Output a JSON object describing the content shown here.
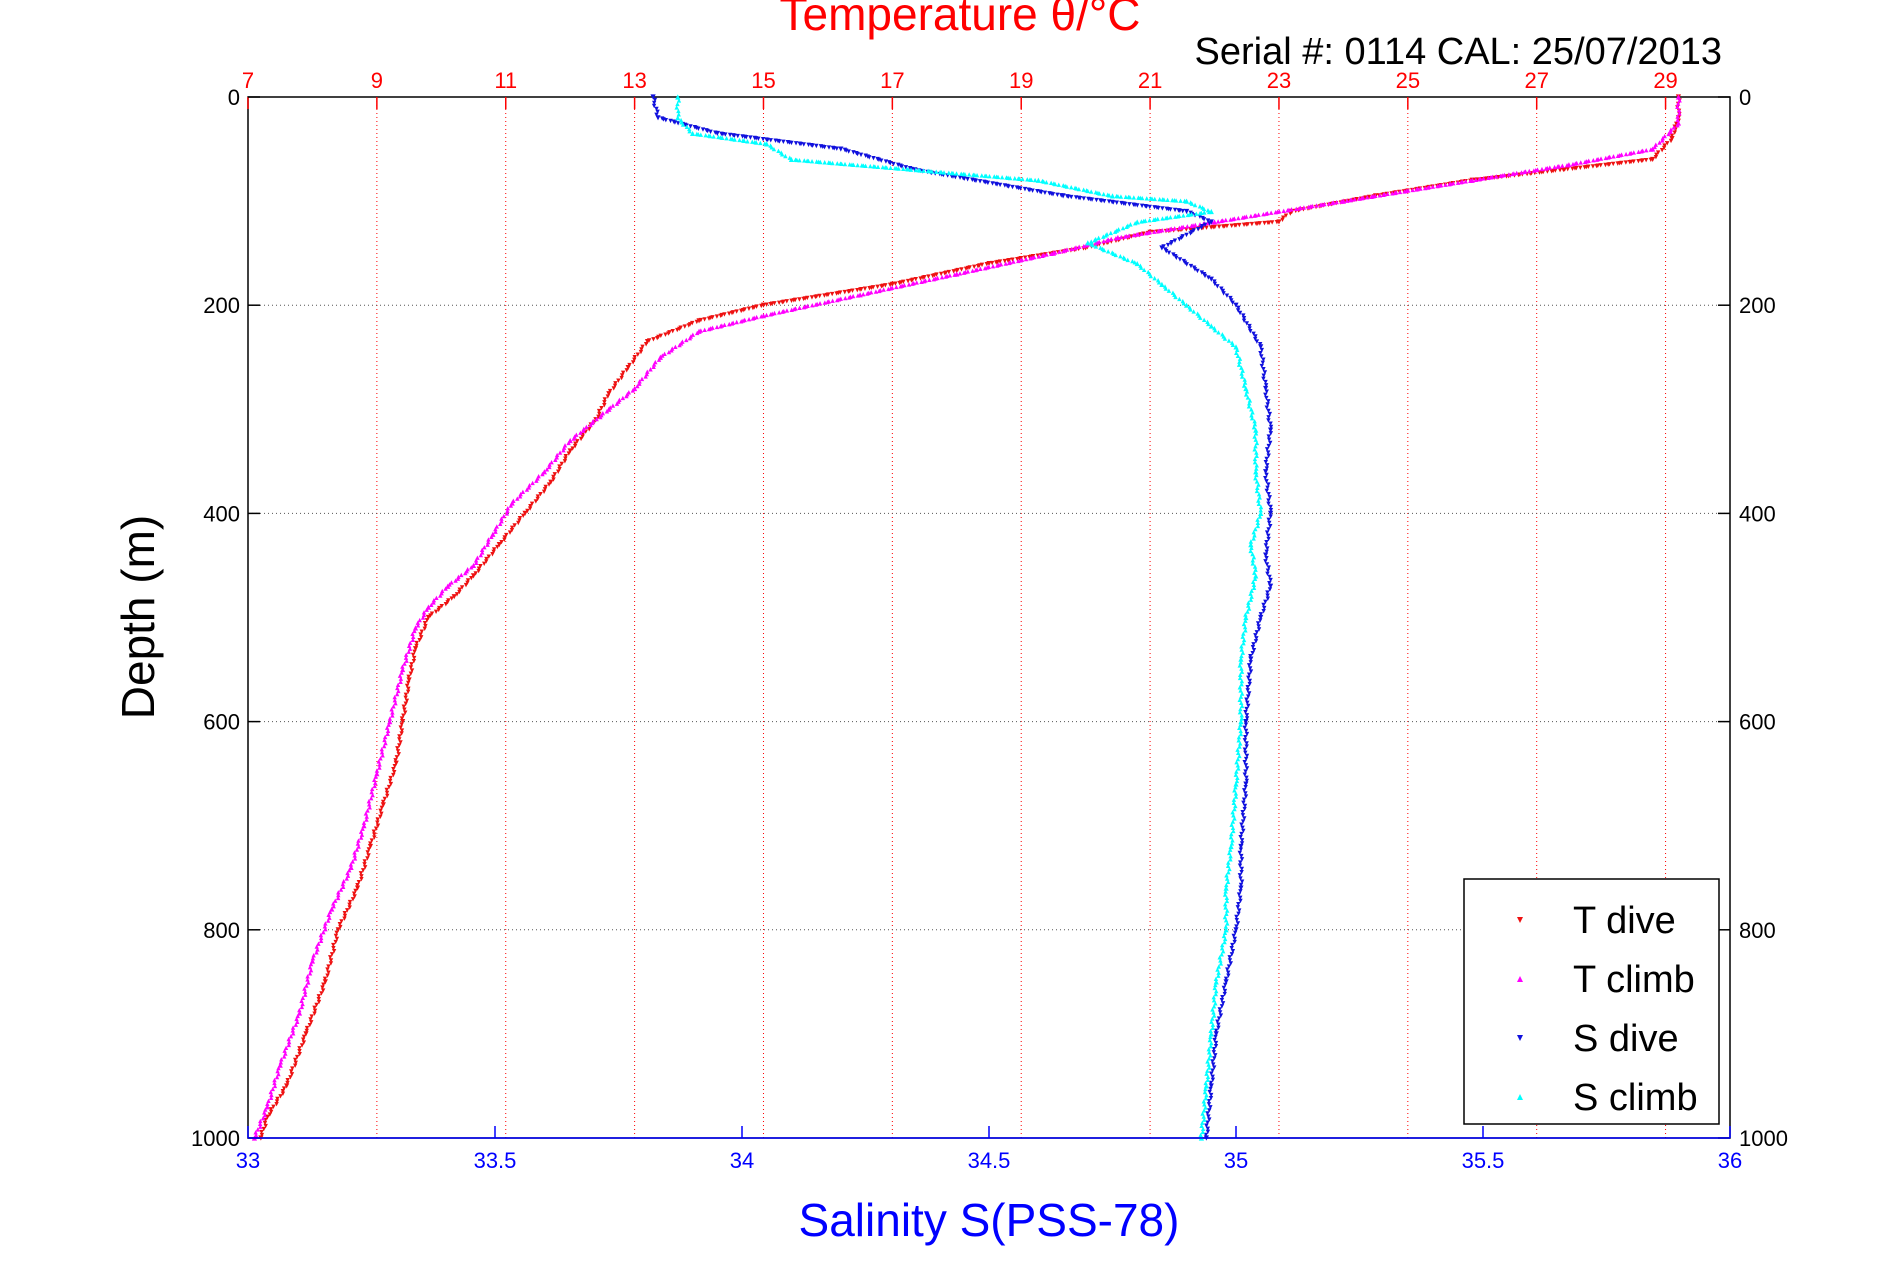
{
  "chart_data": {
    "type": "scatter",
    "title": "Temperature θ/°C",
    "subtitle": "Serial #: 0114  CAL: 25/07/2013",
    "ylabel": "Depth (m)",
    "xlabel_bottom": "Salinity S(PSS-78)",
    "colors": {
      "temperature_axis": "#ff0000",
      "salinity_axis": "#0000ff",
      "t_dive": "#ee1111",
      "t_climb": "#ff00ff",
      "s_dive": "#1010dd",
      "s_climb": "#00ffff",
      "grid": "#555555"
    },
    "y_axis": {
      "ylim": [
        0,
        1000
      ],
      "reversed": true,
      "ticks": [
        0,
        200,
        400,
        600,
        800,
        1000
      ],
      "tick_labels": [
        "0",
        "200",
        "400",
        "600",
        "800",
        "1000"
      ]
    },
    "x_axis_top_temperature": {
      "xlim": [
        7,
        30
      ],
      "ticks": [
        7,
        9,
        11,
        13,
        15,
        17,
        19,
        21,
        23,
        25,
        27,
        29
      ],
      "tick_labels": [
        "7",
        "9",
        "11",
        "13",
        "15",
        "17",
        "19",
        "21",
        "23",
        "25",
        "27",
        "29"
      ]
    },
    "x_axis_bottom_salinity": {
      "xlim": [
        33,
        36
      ],
      "ticks": [
        33,
        33.5,
        34,
        34.5,
        35,
        35.5,
        36
      ],
      "tick_labels": [
        "33",
        "33.5",
        "34",
        "34.5",
        "35",
        "35.5",
        "36"
      ]
    },
    "grid": true,
    "legend_position": "bottom-right",
    "legend": [
      "T dive",
      "T climb",
      "S dive",
      "S climb"
    ],
    "series": [
      {
        "name": "T dive",
        "axis": "temperature",
        "marker": "triangle-down",
        "points": [
          [
            29.2,
            0
          ],
          [
            29.2,
            20
          ],
          [
            29.1,
            40
          ],
          [
            28.8,
            60
          ],
          [
            26.0,
            80
          ],
          [
            24.5,
            95
          ],
          [
            23.2,
            110
          ],
          [
            23.0,
            120
          ],
          [
            21.0,
            130
          ],
          [
            20.0,
            145
          ],
          [
            18.5,
            160
          ],
          [
            17.0,
            180
          ],
          [
            15.0,
            200
          ],
          [
            14.0,
            215
          ],
          [
            13.2,
            235
          ],
          [
            12.9,
            260
          ],
          [
            12.6,
            285
          ],
          [
            12.4,
            310
          ],
          [
            12.0,
            340
          ],
          [
            11.7,
            370
          ],
          [
            11.3,
            400
          ],
          [
            10.9,
            430
          ],
          [
            10.5,
            460
          ],
          [
            10.2,
            480
          ],
          [
            9.8,
            500
          ],
          [
            9.6,
            530
          ],
          [
            9.5,
            560
          ],
          [
            9.4,
            600
          ],
          [
            9.3,
            640
          ],
          [
            9.1,
            680
          ],
          [
            8.9,
            720
          ],
          [
            8.7,
            760
          ],
          [
            8.4,
            800
          ],
          [
            8.2,
            850
          ],
          [
            7.9,
            900
          ],
          [
            7.6,
            950
          ],
          [
            7.3,
            980
          ],
          [
            7.2,
            1000
          ]
        ]
      },
      {
        "name": "T climb",
        "axis": "temperature",
        "marker": "triangle-up",
        "points": [
          [
            29.2,
            0
          ],
          [
            29.2,
            25
          ],
          [
            28.8,
            50
          ],
          [
            27.5,
            65
          ],
          [
            26.0,
            80
          ],
          [
            24.0,
            100
          ],
          [
            22.0,
            120
          ],
          [
            20.5,
            135
          ],
          [
            19.5,
            150
          ],
          [
            18.0,
            170
          ],
          [
            16.5,
            190
          ],
          [
            15.0,
            210
          ],
          [
            14.0,
            225
          ],
          [
            13.4,
            250
          ],
          [
            13.0,
            280
          ],
          [
            12.6,
            300
          ],
          [
            12.0,
            330
          ],
          [
            11.6,
            360
          ],
          [
            11.1,
            390
          ],
          [
            10.8,
            420
          ],
          [
            10.5,
            450
          ],
          [
            10.1,
            470
          ],
          [
            9.8,
            490
          ],
          [
            9.6,
            510
          ],
          [
            9.4,
            550
          ],
          [
            9.2,
            600
          ],
          [
            9.0,
            650
          ],
          [
            8.8,
            700
          ],
          [
            8.6,
            740
          ],
          [
            8.3,
            780
          ],
          [
            8.0,
            830
          ],
          [
            7.8,
            880
          ],
          [
            7.5,
            930
          ],
          [
            7.3,
            970
          ],
          [
            7.1,
            1000
          ]
        ]
      },
      {
        "name": "S dive",
        "axis": "salinity",
        "marker": "triangle-down",
        "points": [
          [
            33.82,
            0
          ],
          [
            33.83,
            20
          ],
          [
            33.95,
            35
          ],
          [
            34.2,
            50
          ],
          [
            34.35,
            70
          ],
          [
            34.65,
            95
          ],
          [
            34.9,
            110
          ],
          [
            34.95,
            120
          ],
          [
            34.85,
            145
          ],
          [
            34.95,
            175
          ],
          [
            35.0,
            200
          ],
          [
            35.05,
            240
          ],
          [
            35.06,
            280
          ],
          [
            35.07,
            320
          ],
          [
            35.06,
            360
          ],
          [
            35.07,
            400
          ],
          [
            35.06,
            440
          ],
          [
            35.07,
            470
          ],
          [
            35.05,
            500
          ],
          [
            35.03,
            540
          ],
          [
            35.02,
            600
          ],
          [
            35.02,
            660
          ],
          [
            35.01,
            720
          ],
          [
            35.01,
            760
          ],
          [
            35.0,
            800
          ],
          [
            34.98,
            850
          ],
          [
            34.96,
            900
          ],
          [
            34.95,
            950
          ],
          [
            34.94,
            1000
          ]
        ]
      },
      {
        "name": "S climb",
        "axis": "salinity",
        "marker": "triangle-up",
        "points": [
          [
            33.87,
            0
          ],
          [
            33.87,
            20
          ],
          [
            33.9,
            35
          ],
          [
            34.05,
            45
          ],
          [
            34.1,
            60
          ],
          [
            34.6,
            80
          ],
          [
            34.75,
            95
          ],
          [
            34.9,
            100
          ],
          [
            34.95,
            110
          ],
          [
            34.8,
            120
          ],
          [
            34.7,
            140
          ],
          [
            34.8,
            160
          ],
          [
            34.85,
            180
          ],
          [
            34.9,
            200
          ],
          [
            34.95,
            220
          ],
          [
            35.0,
            240
          ],
          [
            35.02,
            280
          ],
          [
            35.04,
            320
          ],
          [
            35.04,
            360
          ],
          [
            35.05,
            400
          ],
          [
            35.03,
            430
          ],
          [
            35.04,
            460
          ],
          [
            35.02,
            500
          ],
          [
            35.01,
            540
          ],
          [
            35.01,
            600
          ],
          [
            35.0,
            660
          ],
          [
            34.99,
            720
          ],
          [
            34.98,
            760
          ],
          [
            34.98,
            800
          ],
          [
            34.96,
            850
          ],
          [
            34.95,
            900
          ],
          [
            34.94,
            950
          ],
          [
            34.93,
            1000
          ]
        ]
      }
    ]
  }
}
